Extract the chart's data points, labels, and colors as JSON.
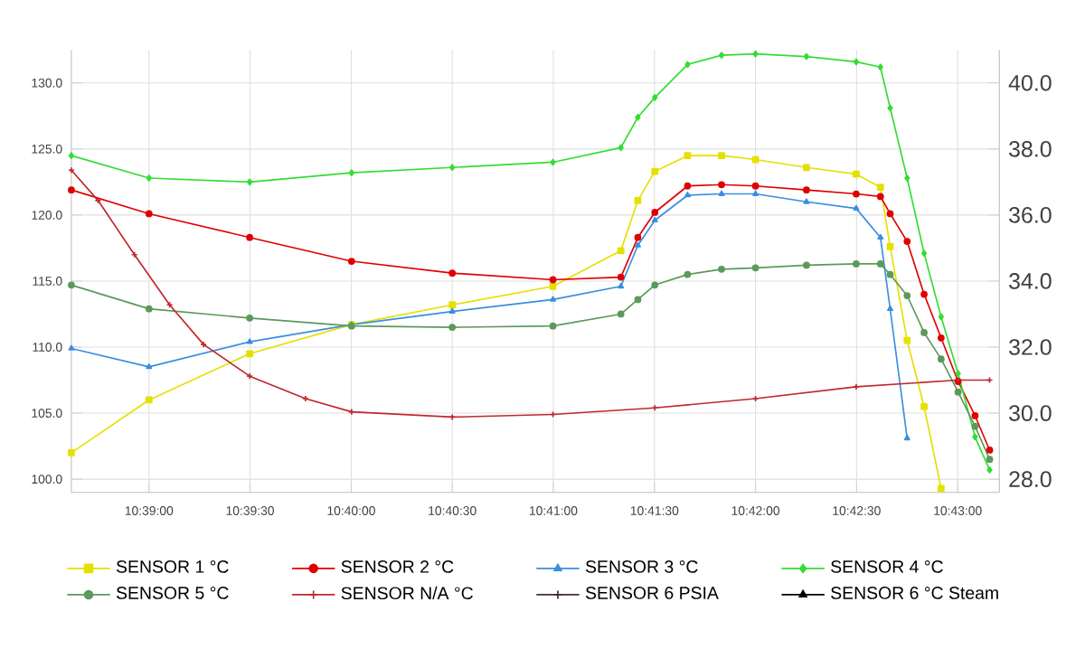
{
  "chart_data": {
    "type": "line",
    "x": [
      10.6436,
      10.65,
      10.6583,
      10.6667,
      10.675,
      10.6833,
      10.6889,
      10.6903,
      10.6917,
      10.6944,
      10.6972,
      10.7,
      10.7042,
      10.7083,
      10.7103,
      10.7111,
      10.7125,
      10.7139,
      10.7153,
      10.7167,
      10.7181,
      10.7193
    ],
    "series": [
      {
        "name": "SENSOR 1 °C",
        "color": "#e6e000",
        "marker": "square",
        "values": [
          102.0,
          106.0,
          109.5,
          111.7,
          113.2,
          114.6,
          117.3,
          121.1,
          123.3,
          124.5,
          124.5,
          124.2,
          123.6,
          123.1,
          122.1,
          117.6,
          110.5,
          105.5,
          99.3,
          null,
          null,
          null
        ]
      },
      {
        "name": "SENSOR 2 °C",
        "color": "#e00000",
        "marker": "circle",
        "values": [
          121.9,
          120.1,
          118.3,
          116.5,
          115.6,
          115.1,
          115.3,
          118.3,
          120.2,
          122.2,
          122.3,
          122.2,
          121.9,
          121.6,
          121.4,
          120.1,
          118.0,
          114.0,
          110.7,
          107.4,
          104.8,
          102.2
        ]
      },
      {
        "name": "SENSOR 3 °C",
        "color": "#3a8ee0",
        "marker": "triangle",
        "values": [
          109.9,
          108.5,
          110.4,
          111.7,
          112.7,
          113.6,
          114.6,
          117.7,
          119.6,
          121.5,
          121.6,
          121.6,
          121.0,
          120.5,
          118.3,
          112.9,
          103.1,
          null,
          null,
          null,
          null,
          null
        ]
      },
      {
        "name": "SENSOR 4 °C",
        "color": "#33dd33",
        "marker": "diamond",
        "values": [
          124.5,
          122.8,
          122.5,
          123.2,
          123.6,
          124.0,
          125.1,
          127.4,
          128.9,
          131.4,
          132.1,
          132.2,
          132.0,
          131.6,
          131.2,
          128.1,
          122.8,
          117.1,
          112.3,
          108.0,
          103.2,
          100.7
        ]
      },
      {
        "name": "SENSOR 5 °C",
        "color": "#5a9a5a",
        "marker": "circle",
        "values": [
          114.7,
          112.9,
          112.2,
          111.6,
          111.5,
          111.6,
          112.5,
          113.6,
          114.7,
          115.5,
          115.9,
          116.0,
          116.2,
          116.3,
          116.3,
          115.5,
          113.9,
          111.1,
          109.1,
          106.6,
          104.0,
          101.5
        ]
      },
      {
        "name": "SENSOR N/A °C",
        "color": "#c0282d",
        "marker": "cross",
        "x": [
          10.6436,
          10.6458,
          10.6488,
          10.6517,
          10.6545,
          10.6583,
          10.6629,
          10.6667,
          10.675,
          10.6833,
          10.6917,
          10.7,
          10.7083,
          10.7167,
          10.7193
        ],
        "values": [
          123.4,
          121.1,
          117.0,
          113.2,
          110.2,
          107.8,
          106.1,
          105.1,
          104.7,
          104.9,
          105.4,
          106.1,
          107.0,
          107.5,
          107.5
        ]
      },
      {
        "name": "SENSOR 6 PSIA",
        "color": "#4a2a3a",
        "marker": "cross",
        "values": [
          null,
          null,
          null,
          null,
          null,
          null,
          null,
          null,
          null,
          null,
          null,
          null,
          null,
          null,
          null,
          null,
          null,
          null,
          null,
          null,
          null,
          null
        ]
      },
      {
        "name": "SENSOR 6 °C Steam",
        "color": "#000000",
        "marker": "triangle",
        "values": [
          null,
          null,
          null,
          null,
          null,
          null,
          null,
          null,
          null,
          null,
          null,
          null,
          null,
          null,
          null,
          null,
          null,
          null,
          null,
          null,
          null,
          null
        ]
      }
    ],
    "xlim": [
      10.6436,
      10.7201
    ],
    "xticks": [
      {
        "value": 10.65,
        "label": "10:39:00"
      },
      {
        "value": 10.65833,
        "label": "10:39:30"
      },
      {
        "value": 10.66667,
        "label": "10:40:00"
      },
      {
        "value": 10.675,
        "label": "10:40:30"
      },
      {
        "value": 10.68333,
        "label": "10:41:00"
      },
      {
        "value": 10.69167,
        "label": "10:41:30"
      },
      {
        "value": 10.7,
        "label": "10:42:00"
      },
      {
        "value": 10.70833,
        "label": "10:42:30"
      },
      {
        "value": 10.71667,
        "label": "10:43:00"
      }
    ],
    "ylim": [
      99,
      132.5
    ],
    "yticks": [
      {
        "value": 100,
        "label": "100.0"
      },
      {
        "value": 105,
        "label": "105.0"
      },
      {
        "value": 110,
        "label": "110.0"
      },
      {
        "value": 115,
        "label": "115.0"
      },
      {
        "value": 120,
        "label": "120.0"
      },
      {
        "value": 125,
        "label": "125.0"
      },
      {
        "value": 130,
        "label": "130.0"
      }
    ],
    "y2lim": [
      27.6,
      41.0
    ],
    "y2ticks": [
      {
        "value": 28,
        "label": "28.0"
      },
      {
        "value": 30,
        "label": "30.0"
      },
      {
        "value": 32,
        "label": "32.0"
      },
      {
        "value": 34,
        "label": "34.0"
      },
      {
        "value": 36,
        "label": "36.0"
      },
      {
        "value": 38,
        "label": "38.0"
      },
      {
        "value": 40,
        "label": "40.0"
      }
    ],
    "grid": true,
    "legend": "bottom",
    "line_style": "solid"
  }
}
